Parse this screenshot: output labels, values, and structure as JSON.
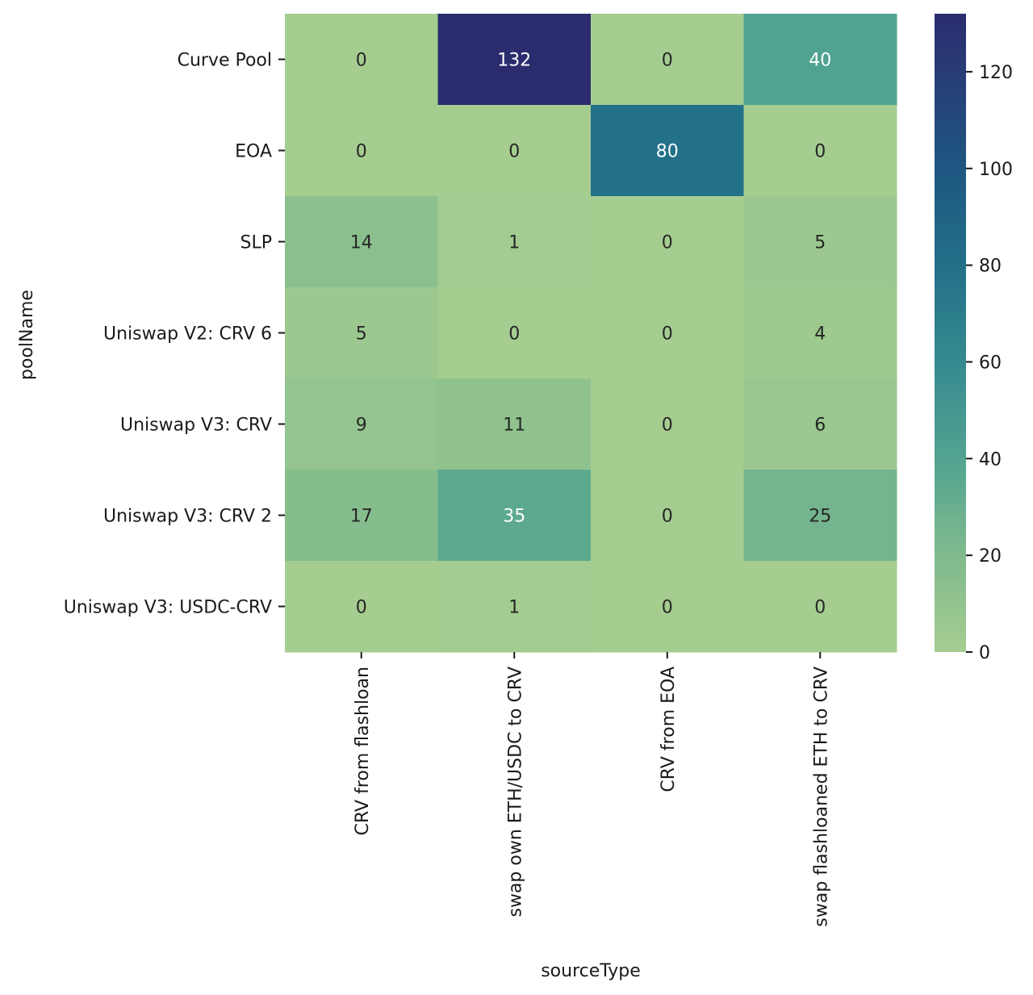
{
  "chart_data": {
    "type": "heatmap",
    "title": "",
    "xlabel": "sourceType",
    "ylabel": "poolName",
    "x_categories": [
      "CRV from flashloan",
      "swap own ETH/USDC to CRV",
      "CRV from EOA",
      "swap flashloaned ETH to CRV"
    ],
    "y_categories": [
      "Curve Pool",
      "EOA",
      "SLP",
      "Uniswap V2: CRV 6",
      "Uniswap V3: CRV",
      "Uniswap V3: CRV 2 ",
      "Uniswap V3: USDC-CRV"
    ],
    "values": [
      [
        0,
        132,
        0,
        40
      ],
      [
        0,
        0,
        80,
        0
      ],
      [
        14,
        1,
        0,
        5
      ],
      [
        5,
        0,
        0,
        4
      ],
      [
        9,
        11,
        0,
        6
      ],
      [
        17,
        35,
        0,
        25
      ],
      [
        0,
        1,
        0,
        0
      ]
    ],
    "annotated": true,
    "colorbar": {
      "colormap": "crest",
      "range": [
        0,
        132
      ],
      "ticks": [
        0,
        20,
        40,
        60,
        80,
        100,
        120
      ]
    },
    "grid": false,
    "legend": "colorbar right"
  }
}
